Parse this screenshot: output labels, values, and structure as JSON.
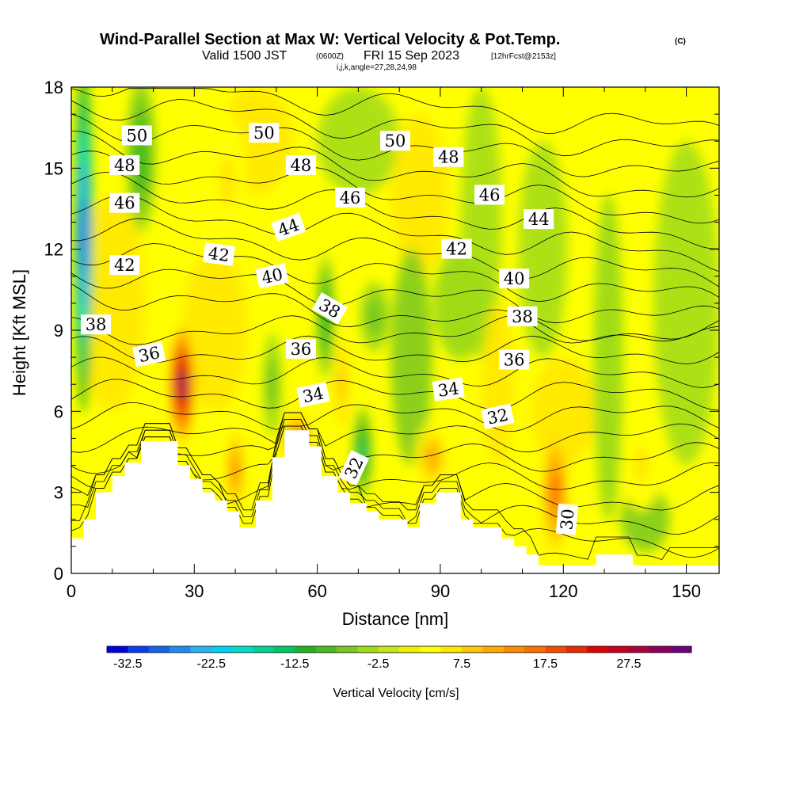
{
  "title": {
    "main": "Wind-Parallel Section at Max W: Vertical Velocity & Pot.Temp.",
    "mark": "(C)",
    "valid": "Valid 1500 JST",
    "zulu": "(0600Z)",
    "date": "FRI 15 Sep 2023",
    "fcst": "[12hrFcst@2153z]",
    "ijk": "i,j,k,angle=27,28,24,98"
  },
  "chart_data": {
    "type": "heatmap",
    "xlabel": "Distance [nm]",
    "ylabel": "Height [Kft MSL]",
    "xlim": [
      0,
      158
    ],
    "ylim": [
      0,
      18
    ],
    "x_ticks": [
      "0",
      "30",
      "60",
      "90",
      "120",
      "150"
    ],
    "y_ticks": [
      "0",
      "3",
      "6",
      "9",
      "12",
      "15",
      "18"
    ],
    "colorbar": {
      "title": "Vertical Velocity [cm/s]",
      "range": [
        -35,
        35
      ],
      "step": 2.5,
      "tick_labels": [
        "-32.5",
        "-22.5",
        "-12.5",
        "-2.5",
        "7.5",
        "17.5",
        "27.5"
      ],
      "colors": [
        "#0000e6",
        "#0a3cf0",
        "#1464f0",
        "#1e8cf0",
        "#28b4f0",
        "#00d2f0",
        "#00dcc8",
        "#00d296",
        "#00c864",
        "#1eb41e",
        "#46be1e",
        "#78c81e",
        "#a0dc14",
        "#c8e614",
        "#f0f000",
        "#ffff00",
        "#ffe600",
        "#ffc800",
        "#ffaa00",
        "#ff8c00",
        "#ff6e00",
        "#f54b00",
        "#eb2800",
        "#e10000",
        "#c8001e",
        "#aa003c",
        "#8c005a",
        "#6e0078"
      ]
    },
    "vertical_velocity_cores": [
      {
        "x": 3,
        "y": 12.5,
        "w": -30
      },
      {
        "x": 17,
        "y": 15.5,
        "w": -10
      },
      {
        "x": 27,
        "y": 7.0,
        "w": 31
      },
      {
        "x": 40,
        "y": 3.8,
        "w": 14
      },
      {
        "x": 38,
        "y": 14.5,
        "w": 5
      },
      {
        "x": 49,
        "y": 7.0,
        "w": -7
      },
      {
        "x": 55,
        "y": 5.0,
        "w": 13
      },
      {
        "x": 62,
        "y": 9.5,
        "w": -11
      },
      {
        "x": 66,
        "y": 7.0,
        "w": 8
      },
      {
        "x": 71,
        "y": 4.5,
        "w": -13
      },
      {
        "x": 74,
        "y": 9.5,
        "w": -6
      },
      {
        "x": 88,
        "y": 4.3,
        "w": 10
      },
      {
        "x": 95,
        "y": 10.0,
        "w": -4
      },
      {
        "x": 118,
        "y": 3.0,
        "w": 15
      },
      {
        "x": 131,
        "y": 8.0,
        "w": -5
      },
      {
        "x": 134,
        "y": 16.0,
        "w": 4
      },
      {
        "x": 139,
        "y": 4.0,
        "w": 6
      }
    ],
    "pot_temp_contours": {
      "label_text": [
        "30",
        "32",
        "34",
        "36",
        "38",
        "40",
        "42",
        "44",
        "46",
        "48",
        "50"
      ],
      "levels": [
        29,
        30,
        31,
        32,
        33,
        34,
        35,
        36,
        37,
        38,
        39,
        40,
        41,
        42,
        43,
        44,
        45,
        46,
        47,
        48,
        49,
        50,
        51
      ]
    },
    "terrain": [
      [
        0,
        1.3
      ],
      [
        3,
        1.3
      ],
      [
        3,
        2.0
      ],
      [
        6,
        2.0
      ],
      [
        6,
        3.0
      ],
      [
        10,
        3.0
      ],
      [
        10,
        3.6
      ],
      [
        13,
        3.6
      ],
      [
        13,
        4.1
      ],
      [
        17,
        4.1
      ],
      [
        17,
        4.9
      ],
      [
        26,
        4.9
      ],
      [
        26,
        4.0
      ],
      [
        29,
        4.0
      ],
      [
        29,
        3.5
      ],
      [
        32,
        3.5
      ],
      [
        32,
        3.0
      ],
      [
        35,
        3.0
      ],
      [
        35,
        2.7
      ],
      [
        38,
        2.7
      ],
      [
        38,
        2.3
      ],
      [
        41,
        2.3
      ],
      [
        41,
        1.7
      ],
      [
        45,
        1.7
      ],
      [
        45,
        2.7
      ],
      [
        49,
        2.7
      ],
      [
        49,
        4.3
      ],
      [
        52,
        4.3
      ],
      [
        52,
        5.3
      ],
      [
        58,
        5.3
      ],
      [
        58,
        4.7
      ],
      [
        61,
        4.7
      ],
      [
        61,
        3.6
      ],
      [
        65,
        3.6
      ],
      [
        65,
        3.0
      ],
      [
        68,
        3.0
      ],
      [
        68,
        2.6
      ],
      [
        72,
        2.6
      ],
      [
        72,
        2.3
      ],
      [
        75,
        2.3
      ],
      [
        75,
        2.0
      ],
      [
        82,
        2.0
      ],
      [
        82,
        1.7
      ],
      [
        85,
        1.7
      ],
      [
        85,
        2.6
      ],
      [
        89,
        2.6
      ],
      [
        89,
        3.0
      ],
      [
        95,
        3.0
      ],
      [
        95,
        2.0
      ],
      [
        98,
        2.0
      ],
      [
        98,
        1.7
      ],
      [
        105,
        1.7
      ],
      [
        105,
        1.3
      ],
      [
        108,
        1.3
      ],
      [
        108,
        1.0
      ],
      [
        111,
        1.0
      ],
      [
        111,
        0.7
      ],
      [
        114,
        0.7
      ],
      [
        114,
        0.3
      ],
      [
        128,
        0.3
      ],
      [
        128,
        0.7
      ],
      [
        137,
        0.7
      ],
      [
        137,
        0.3
      ],
      [
        158,
        0.3
      ]
    ]
  }
}
